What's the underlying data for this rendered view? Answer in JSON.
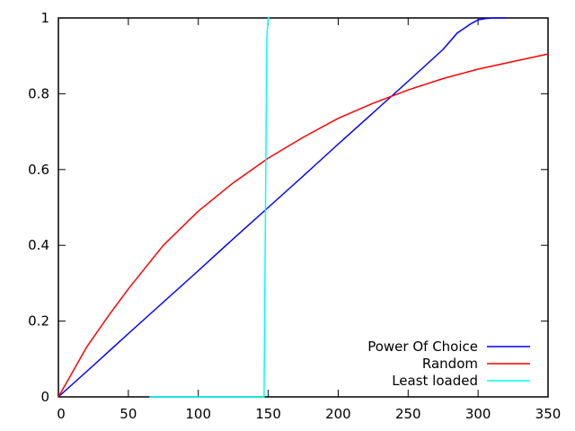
{
  "chart_data": {
    "type": "line",
    "title": "",
    "xlabel": "",
    "ylabel": "",
    "xlim": [
      0,
      350
    ],
    "ylim": [
      0,
      1
    ],
    "xticks": [
      0,
      50,
      100,
      150,
      200,
      250,
      300,
      350
    ],
    "yticks": [
      0,
      0.2,
      0.4,
      0.6,
      0.8,
      1
    ],
    "xtick_labels": [
      "0",
      "50",
      "100",
      "150",
      "200",
      "250",
      "300",
      "350"
    ],
    "ytick_labels": [
      "0",
      "0.2",
      "0.4",
      "0.6",
      "0.8",
      "1"
    ],
    "grid": false,
    "legend_position": "bottom-right",
    "series": [
      {
        "name": "Power Of Choice",
        "color": "#0000ff",
        "points": [
          [
            0,
            0
          ],
          [
            25,
            0.083
          ],
          [
            50,
            0.167
          ],
          [
            75,
            0.25
          ],
          [
            100,
            0.333
          ],
          [
            125,
            0.417
          ],
          [
            150,
            0.5
          ],
          [
            175,
            0.583
          ],
          [
            200,
            0.667
          ],
          [
            225,
            0.75
          ],
          [
            250,
            0.833
          ],
          [
            275,
            0.917
          ],
          [
            285,
            0.96
          ],
          [
            295,
            0.985
          ],
          [
            300,
            0.995
          ],
          [
            305,
            0.998
          ],
          [
            310,
            1.0
          ],
          [
            320,
            1.0
          ]
        ]
      },
      {
        "name": "Random",
        "color": "#ff0000",
        "points": [
          [
            0,
            0
          ],
          [
            10,
            0.065
          ],
          [
            20,
            0.13
          ],
          [
            35,
            0.21
          ],
          [
            50,
            0.285
          ],
          [
            75,
            0.4
          ],
          [
            100,
            0.49
          ],
          [
            125,
            0.565
          ],
          [
            150,
            0.63
          ],
          [
            175,
            0.685
          ],
          [
            200,
            0.735
          ],
          [
            225,
            0.775
          ],
          [
            250,
            0.81
          ],
          [
            275,
            0.84
          ],
          [
            300,
            0.865
          ],
          [
            325,
            0.885
          ],
          [
            350,
            0.905
          ]
        ]
      },
      {
        "name": "Least loaded",
        "color": "#00ffff",
        "points": [
          [
            65,
            0
          ],
          [
            147,
            0
          ],
          [
            148,
            0.5
          ],
          [
            149,
            0.95
          ],
          [
            150,
            1.0
          ],
          [
            151,
            1.0
          ]
        ]
      }
    ]
  }
}
